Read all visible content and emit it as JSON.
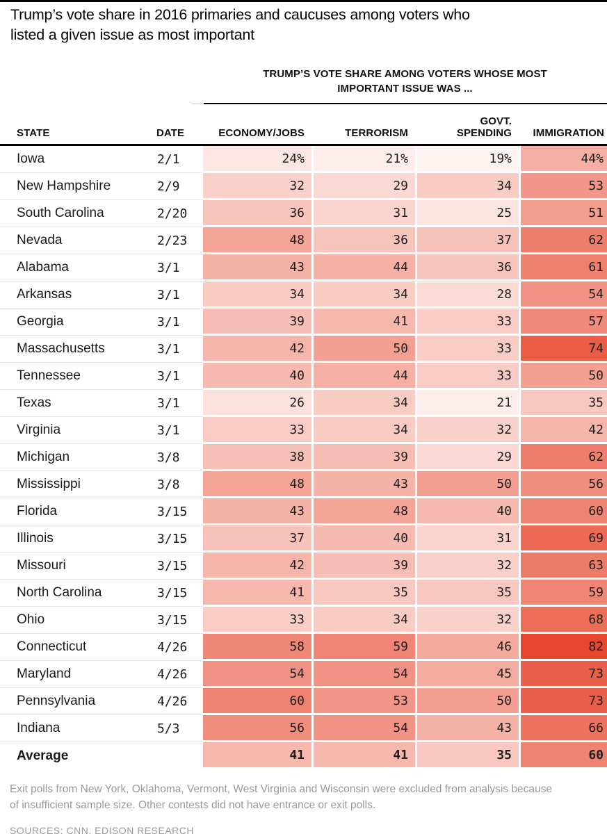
{
  "title": {
    "lines": [
      "Trump’s vote share in 2016 primaries and caucuses among voters who",
      "listed a given issue as most important"
    ]
  },
  "spanner": {
    "lines": [
      "TRUMP’S VOTE SHARE AMONG VOTERS WHOSE MOST",
      "IMPORTANT ISSUE WAS ..."
    ]
  },
  "columns": [
    "STATE",
    "DATE",
    "ECONOMY/JOBS",
    "TERRORISM",
    "GOVT.\nSPENDING",
    "IMMIGRATION"
  ],
  "footnote": "Exit polls from New York, Oklahoma, Vermont, West Virginia and Wisconsin were excluded from analysis because of insufficient sample size. Other contests did not have entrance or exit polls.",
  "sources": "SOURCES: CNN, EDISON RESEARCH",
  "chart_data": {
    "type": "heatmap",
    "title": "Trump's vote share in 2016 primaries and caucuses among voters who listed a given issue as most important",
    "columns": [
      "STATE",
      "DATE",
      "ECONOMY/JOBS",
      "TERRORISM",
      "GOVT. SPENDING",
      "IMMIGRATION"
    ],
    "value_unit": "percent",
    "color_scale": {
      "min_value": 15,
      "max_value": 85,
      "min_color": "#ffffff",
      "max_color": "#e63e23"
    },
    "rows": [
      {
        "state": "Iowa",
        "date": "2/1",
        "values": [
          24,
          21,
          19,
          44
        ],
        "suffix": "%"
      },
      {
        "state": "New Hampshire",
        "date": "2/9",
        "values": [
          32,
          29,
          34,
          53
        ]
      },
      {
        "state": "South Carolina",
        "date": "2/20",
        "values": [
          36,
          31,
          25,
          51
        ]
      },
      {
        "state": "Nevada",
        "date": "2/23",
        "values": [
          48,
          36,
          37,
          62
        ]
      },
      {
        "state": "Alabama",
        "date": "3/1",
        "values": [
          43,
          44,
          36,
          61
        ]
      },
      {
        "state": "Arkansas",
        "date": "3/1",
        "values": [
          34,
          34,
          28,
          54
        ]
      },
      {
        "state": "Georgia",
        "date": "3/1",
        "values": [
          39,
          41,
          33,
          57
        ]
      },
      {
        "state": "Massachusetts",
        "date": "3/1",
        "values": [
          42,
          50,
          33,
          74
        ]
      },
      {
        "state": "Tennessee",
        "date": "3/1",
        "values": [
          40,
          44,
          33,
          50
        ]
      },
      {
        "state": "Texas",
        "date": "3/1",
        "values": [
          26,
          34,
          21,
          35
        ]
      },
      {
        "state": "Virginia",
        "date": "3/1",
        "values": [
          33,
          34,
          32,
          42
        ]
      },
      {
        "state": "Michigan",
        "date": "3/8",
        "values": [
          38,
          39,
          29,
          62
        ]
      },
      {
        "state": "Mississippi",
        "date": "3/8",
        "values": [
          48,
          43,
          50,
          56
        ]
      },
      {
        "state": "Florida",
        "date": "3/15",
        "values": [
          43,
          48,
          40,
          60
        ]
      },
      {
        "state": "Illinois",
        "date": "3/15",
        "values": [
          37,
          40,
          31,
          69
        ]
      },
      {
        "state": "Missouri",
        "date": "3/15",
        "values": [
          42,
          39,
          32,
          63
        ]
      },
      {
        "state": "North Carolina",
        "date": "3/15",
        "values": [
          41,
          35,
          35,
          59
        ]
      },
      {
        "state": "Ohio",
        "date": "3/15",
        "values": [
          33,
          34,
          32,
          68
        ]
      },
      {
        "state": "Connecticut",
        "date": "4/26",
        "values": [
          58,
          59,
          46,
          82
        ]
      },
      {
        "state": "Maryland",
        "date": "4/26",
        "values": [
          54,
          54,
          45,
          73
        ]
      },
      {
        "state": "Pennsylvania",
        "date": "4/26",
        "values": [
          60,
          53,
          50,
          73
        ]
      },
      {
        "state": "Indiana",
        "date": "5/3",
        "values": [
          56,
          54,
          43,
          66
        ]
      },
      {
        "state": "Average",
        "date": "",
        "values": [
          41,
          41,
          35,
          60
        ],
        "bold": true
      }
    ]
  }
}
